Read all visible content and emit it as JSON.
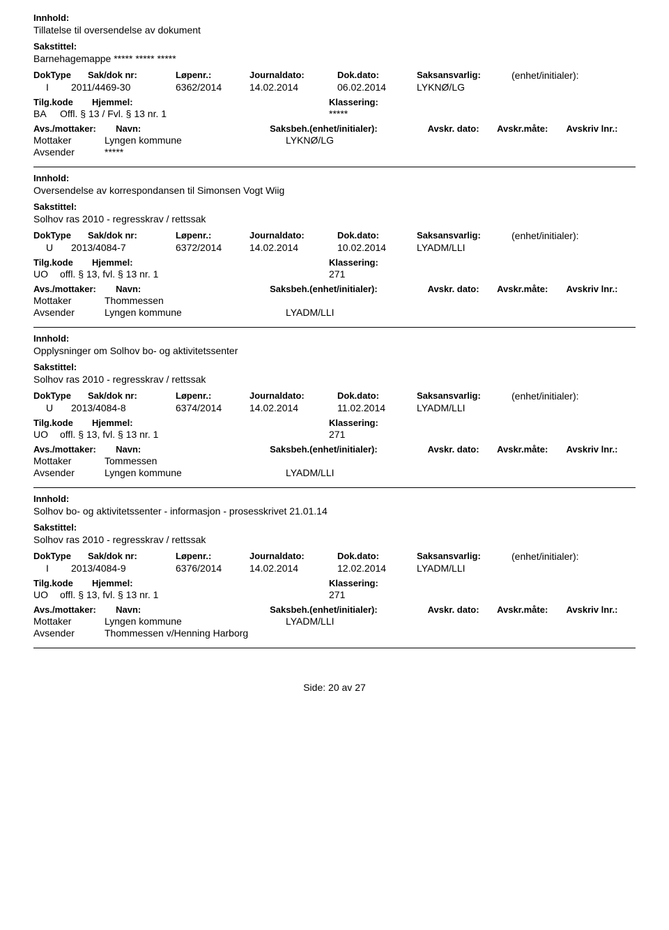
{
  "labels": {
    "innhold": "Innhold:",
    "sakstittel": "Sakstittel:",
    "doktype": "DokType",
    "sakdok": "Sak/dok nr:",
    "lopenr": "Løpenr.:",
    "journaldato": "Journaldato:",
    "dokdato": "Dok.dato:",
    "saksansvarlig": "Saksansvarlig:",
    "enhet": "(enhet/initialer):",
    "tilgkode": "Tilg.kode",
    "hjemmel": "Hjemmel:",
    "klassering": "Klassering:",
    "avsmottaker": "Avs./mottaker:",
    "navn": "Navn:",
    "saksbeh": "Saksbeh.(enhet/initialer):",
    "avskrdato": "Avskr. dato:",
    "avskrmate": "Avskr.måte:",
    "avskrlnr": "Avskriv lnr.:",
    "mottaker": "Mottaker",
    "avsender": "Avsender",
    "side": "Side:",
    "av": "av"
  },
  "page": {
    "current": "20",
    "total": "27"
  },
  "entries": [
    {
      "innhold": "Tillatelse til oversendelse av dokument",
      "sakstittel": "Barnehagemappe ***** ***** *****",
      "doktype": "I",
      "sakdok": "2011/4469-30",
      "lopenr": "6362/2014",
      "journaldato": "14.02.2014",
      "dokdato": "06.02.2014",
      "saksansvarlig": "LYKNØ/LG",
      "tilgkode": "BA",
      "hjemmel": "Offl. § 13 / Fvl. § 13 nr. 1",
      "klassering": "*****",
      "show_avs_header": false,
      "parties": [
        {
          "role": "Mottaker",
          "navn": "Lyngen kommune",
          "saksbeh": "LYKNØ/LG"
        },
        {
          "role": "Avsender",
          "navn": "*****",
          "saksbeh": ""
        }
      ]
    },
    {
      "innhold": "Oversendelse av korrespondansen til Simonsen Vogt Wiig",
      "sakstittel": "Solhov ras 2010 - regresskrav / rettssak",
      "doktype": "U",
      "sakdok": "2013/4084-7",
      "lopenr": "6372/2014",
      "journaldato": "14.02.2014",
      "dokdato": "10.02.2014",
      "saksansvarlig": "LYADM/LLI",
      "tilgkode": "UO",
      "hjemmel": "offl. § 13, fvl. § 13 nr. 1",
      "klassering": "271",
      "show_avs_header": false,
      "parties": [
        {
          "role": "Mottaker",
          "navn": "Thommessen",
          "saksbeh": ""
        },
        {
          "role": "Avsender",
          "navn": "Lyngen kommune",
          "saksbeh": "LYADM/LLI"
        }
      ]
    },
    {
      "innhold": "Opplysninger om Solhov bo- og aktivitetssenter",
      "sakstittel": "Solhov ras 2010 - regresskrav / rettssak",
      "doktype": "U",
      "sakdok": "2013/4084-8",
      "lopenr": "6374/2014",
      "journaldato": "14.02.2014",
      "dokdato": "11.02.2014",
      "saksansvarlig": "LYADM/LLI",
      "tilgkode": "UO",
      "hjemmel": "offl. § 13, fvl. § 13 nr. 1",
      "klassering": "271",
      "show_avs_header": true,
      "parties": [
        {
          "role": "Mottaker",
          "navn": "Tommessen",
          "saksbeh": ""
        },
        {
          "role": "Avsender",
          "navn": "Lyngen kommune",
          "saksbeh": "LYADM/LLI"
        }
      ]
    },
    {
      "innhold": "Solhov bo- og aktivitetssenter - informasjon - prosesskrivet 21.01.14",
      "sakstittel": "Solhov ras 2010 - regresskrav / rettssak",
      "doktype": "I",
      "sakdok": "2013/4084-9",
      "lopenr": "6376/2014",
      "journaldato": "14.02.2014",
      "dokdato": "12.02.2014",
      "saksansvarlig": "LYADM/LLI",
      "tilgkode": "UO",
      "hjemmel": "offl. § 13, fvl. § 13 nr. 1",
      "klassering": "271",
      "show_avs_header": true,
      "parties": [
        {
          "role": "Mottaker",
          "navn": "Lyngen kommune",
          "saksbeh": "LYADM/LLI"
        },
        {
          "role": "Avsender",
          "navn": "Thommessen v/Henning Harborg",
          "saksbeh": ""
        }
      ]
    }
  ]
}
